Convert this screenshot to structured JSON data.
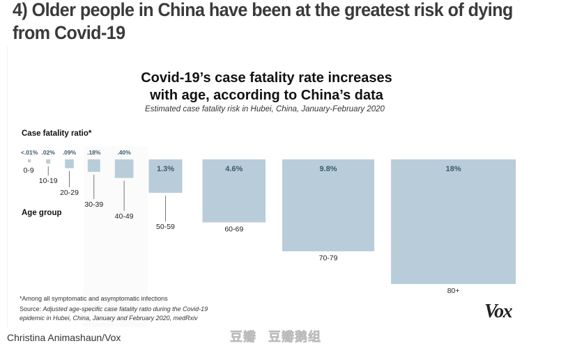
{
  "headline": "4) Older people in China have been at the greatest risk of dying from Covid-19",
  "chart_data": {
    "type": "proportional-square",
    "title": "Covid-19’s case fatality rate increases with age, according to China’s data",
    "subtitle": "Estimated case fatality risk in Hubei, China, January-February 2020",
    "value_axis_label": "Case fatality ratio*",
    "category_axis_label": "Age group",
    "categories": [
      "0-9",
      "10-19",
      "20-29",
      "30-39",
      "40-49",
      "50-59",
      "60-69",
      "70-79",
      "80+"
    ],
    "values": [
      0.01,
      0.02,
      0.09,
      0.18,
      0.4,
      1.3,
      4.6,
      9.8,
      18
    ],
    "value_labels": [
      "<.01%",
      ".02%",
      ".09%",
      ".18%",
      ".40%",
      "1.3%",
      "4.6%",
      "9.8%",
      "18%"
    ],
    "unit": "%",
    "encoding": "square area proportional to value",
    "colors": {
      "square": "#b8cdd9",
      "label_inside": "#3d5a6b",
      "label_outside": "#3d5a6b"
    }
  },
  "footnote": "*Among all symptomatic and asymptomatic infections",
  "source_prefix": "Source: ",
  "source_text": "Adjusted age-specific case fatality ratio during the Covid-19 epidemic in Hubei, China, January and February 2020, medRxiv",
  "logo": "Vox",
  "credit": "Christina Animashaun/Vox",
  "watermark_1": "豆瓣",
  "watermark_2": "豆瓣鹅组"
}
